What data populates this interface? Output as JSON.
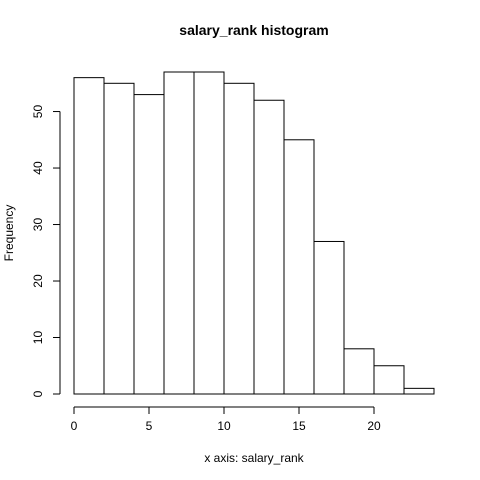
{
  "chart_data": {
    "type": "bar",
    "title": "salary_rank histogram",
    "xlabel": "x axis: salary_rank",
    "ylabel": "Frequency",
    "bins": [
      {
        "start": 0,
        "end": 2,
        "count": 56
      },
      {
        "start": 2,
        "end": 4,
        "count": 55
      },
      {
        "start": 4,
        "end": 6,
        "count": 53
      },
      {
        "start": 6,
        "end": 8,
        "count": 57
      },
      {
        "start": 8,
        "end": 10,
        "count": 57
      },
      {
        "start": 10,
        "end": 12,
        "count": 55
      },
      {
        "start": 12,
        "end": 14,
        "count": 52
      },
      {
        "start": 14,
        "end": 16,
        "count": 45
      },
      {
        "start": 16,
        "end": 18,
        "count": 27
      },
      {
        "start": 18,
        "end": 20,
        "count": 8
      },
      {
        "start": 20,
        "end": 22,
        "count": 5
      },
      {
        "start": 22,
        "end": 24,
        "count": 1
      }
    ],
    "xticks": [
      0,
      5,
      10,
      15,
      20
    ],
    "yticks": [
      0,
      10,
      20,
      30,
      40,
      50
    ],
    "xlim": [
      0,
      24
    ],
    "ylim": [
      0,
      57
    ],
    "grid": false,
    "legend": "none",
    "bar_fill": "#ffffff",
    "bar_stroke": "#000000"
  }
}
